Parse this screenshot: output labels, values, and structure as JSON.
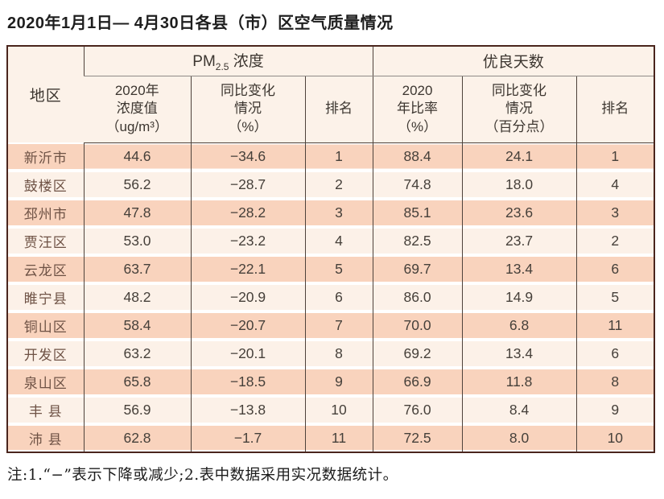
{
  "title": "2020年1月1日— 4月30日各县（市）区空气质量情况",
  "table": {
    "region_header": "地区",
    "pm_group": {
      "prefix": "PM",
      "sub": "2.5",
      "suffix": " 浓度"
    },
    "good_days_group": "优良天数",
    "sub_headers": [
      "2020年\n浓度值\n（ug/m³）",
      "同比变化\n情况\n（%）",
      "排名",
      "2020\n年比率\n（%）",
      "同比变化\n情况\n（百分点）",
      "排名"
    ],
    "rows": [
      {
        "region": "新沂市",
        "values": [
          "44.6",
          "−34.6",
          "1",
          "88.4",
          "24.1",
          "1"
        ]
      },
      {
        "region": "鼓楼区",
        "values": [
          "56.2",
          "−28.7",
          "2",
          "74.8",
          "18.0",
          "4"
        ]
      },
      {
        "region": "邳州市",
        "values": [
          "47.8",
          "−28.2",
          "3",
          "85.1",
          "23.6",
          "3"
        ]
      },
      {
        "region": "贾汪区",
        "values": [
          "53.0",
          "−23.2",
          "4",
          "82.5",
          "23.7",
          "2"
        ]
      },
      {
        "region": "云龙区",
        "values": [
          "63.7",
          "−22.1",
          "5",
          "69.7",
          "13.4",
          "6"
        ]
      },
      {
        "region": "睢宁县",
        "values": [
          "48.2",
          "−20.9",
          "6",
          "86.0",
          "14.9",
          "5"
        ]
      },
      {
        "region": "铜山区",
        "values": [
          "58.4",
          "−20.7",
          "7",
          "70.0",
          "6.8",
          "11"
        ]
      },
      {
        "region": "开发区",
        "values": [
          "63.2",
          "−20.1",
          "8",
          "69.2",
          "13.4",
          "6"
        ]
      },
      {
        "region": "泉山区",
        "values": [
          "65.8",
          "−18.5",
          "9",
          "66.9",
          "11.8",
          "8"
        ]
      },
      {
        "region": "丰 县",
        "values": [
          "56.9",
          "−13.8",
          "10",
          "76.0",
          "8.4",
          "9"
        ]
      },
      {
        "region": "沛 县",
        "values": [
          "62.8",
          "−1.7",
          "11",
          "72.5",
          "8.0",
          "10"
        ]
      }
    ]
  },
  "note": "注:1.“−”表示下降或减少;2.表中数据采用实况数据统计。",
  "colors": {
    "row_odd": "#f9d3bd",
    "row_even": "#fcf1e8",
    "header_bg": "#fcf2e9",
    "outer_border": "#4a251d",
    "inner_line": "#4e423b"
  }
}
